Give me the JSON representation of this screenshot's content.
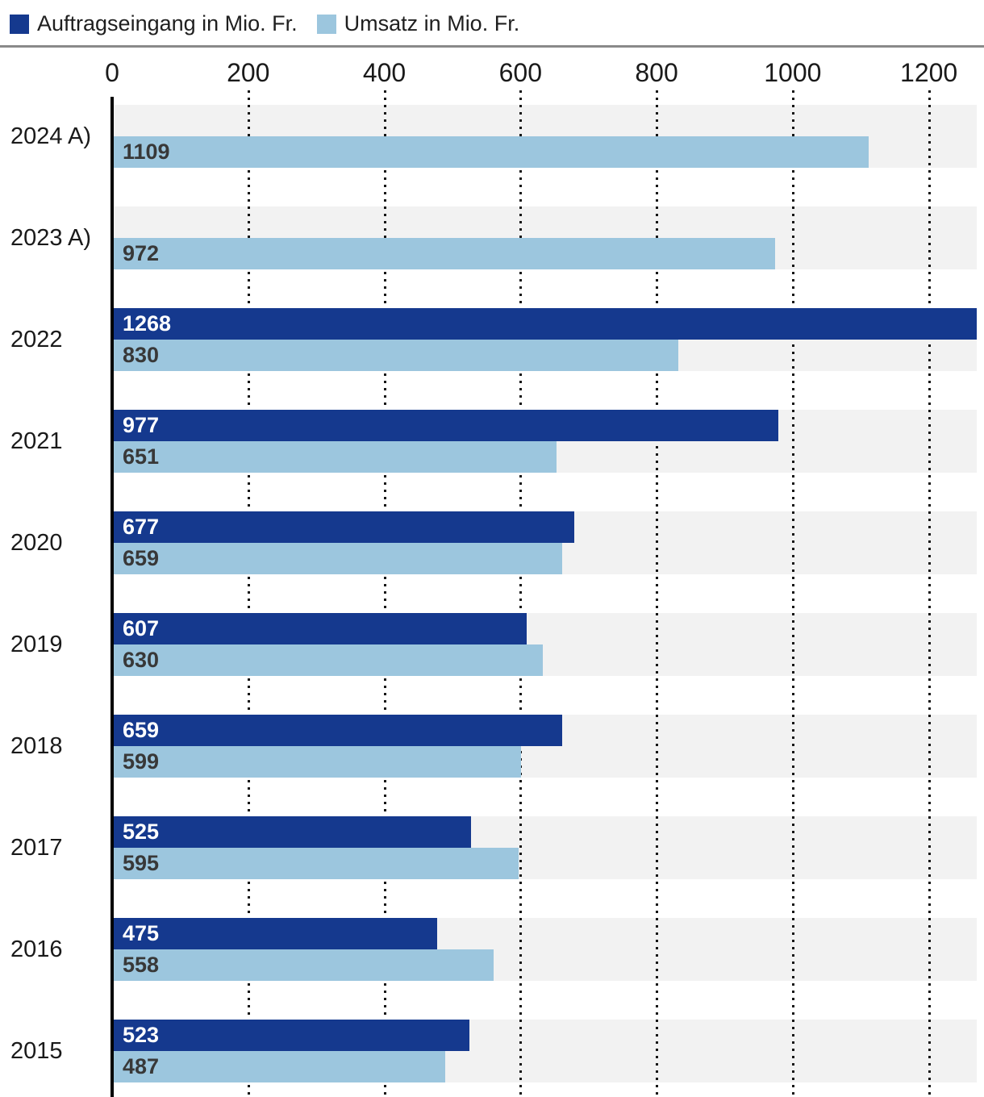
{
  "legend": {
    "items": [
      {
        "label": "Auftragseingang in Mio. Fr.",
        "color": "#15398e"
      },
      {
        "label": "Umsatz in Mio. Fr.",
        "color": "#9cc6de"
      }
    ]
  },
  "chart_data": {
    "type": "bar",
    "orientation": "horizontal",
    "title": "",
    "categories": [
      "2024 A)",
      "2023 A)",
      "2022",
      "2021",
      "2020",
      "2019",
      "2018",
      "2017",
      "2016",
      "2015"
    ],
    "series": [
      {
        "name": "Auftragseingang in Mio. Fr.",
        "color": "#15398e",
        "values": [
          null,
          null,
          1268,
          977,
          677,
          607,
          659,
          525,
          475,
          523
        ]
      },
      {
        "name": "Umsatz in Mio. Fr.",
        "color": "#9cc6de",
        "values": [
          1109,
          972,
          830,
          651,
          659,
          630,
          599,
          595,
          558,
          487
        ]
      }
    ],
    "x_ticks": [
      0,
      200,
      400,
      600,
      800,
      1000,
      1200
    ],
    "xlim": [
      0,
      1268
    ],
    "grid": "dotted-vertical",
    "row_background": "#f2f2f2",
    "legend_position": "top",
    "value_labels": "inside-left"
  }
}
